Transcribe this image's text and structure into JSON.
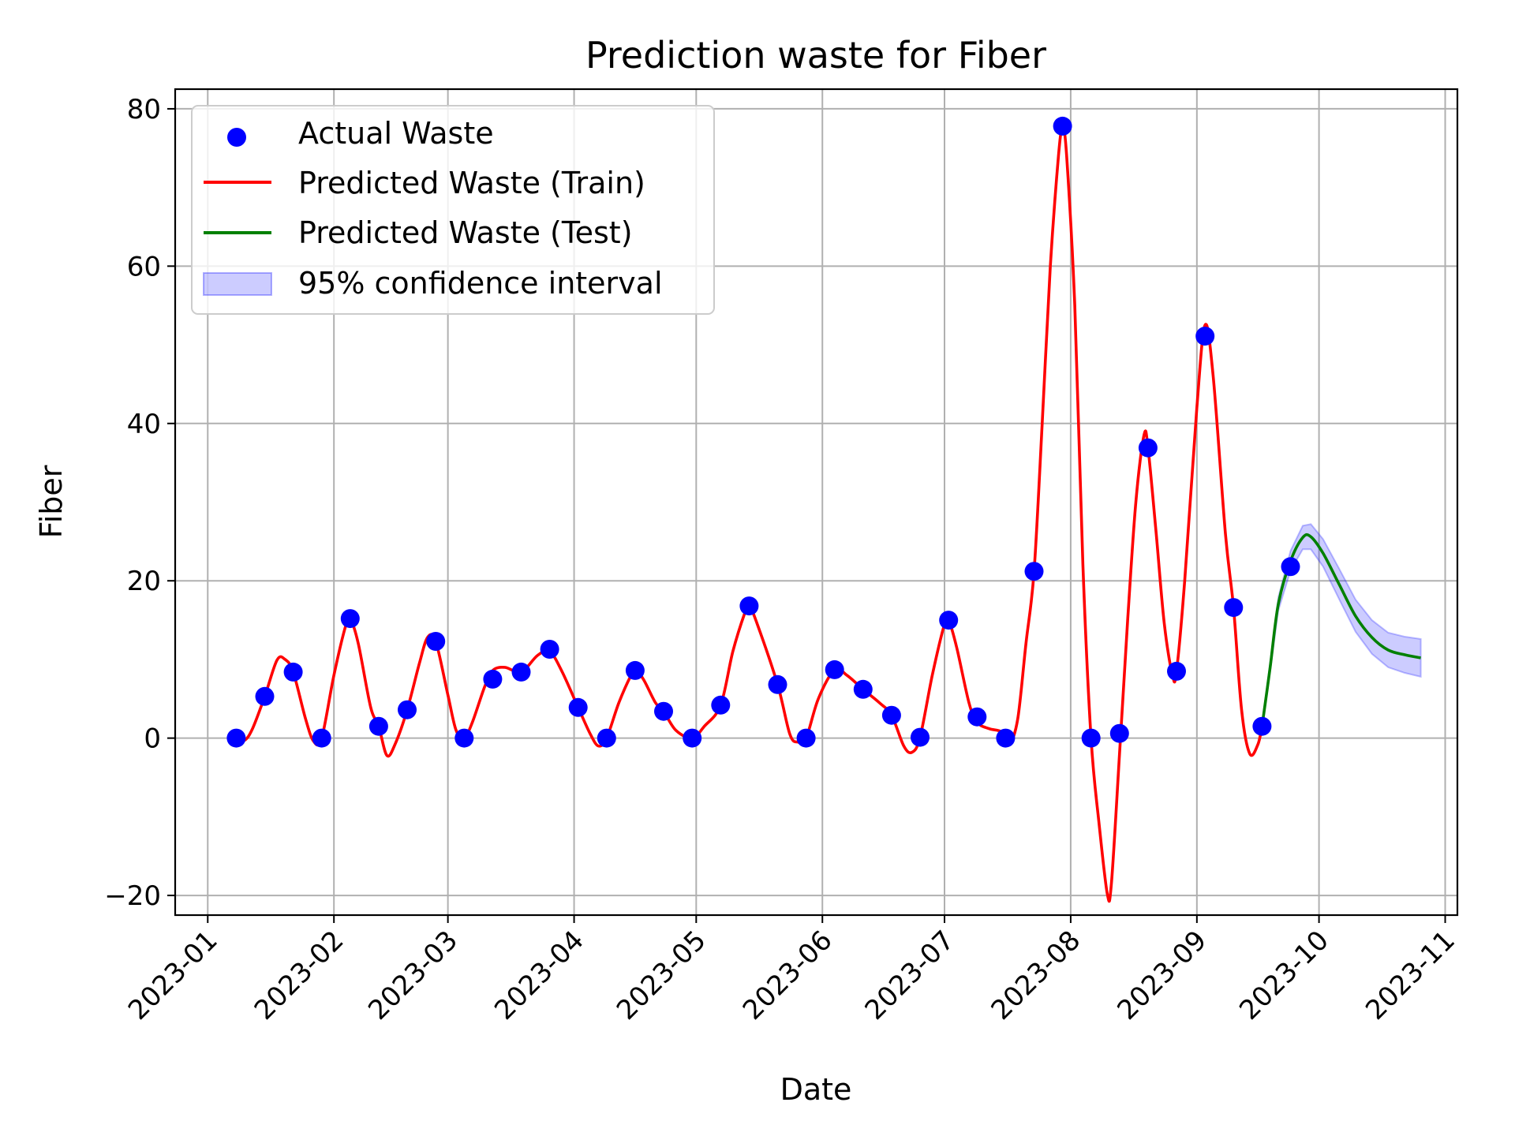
{
  "chart_data": {
    "type": "line",
    "title": "Prediction waste for Fiber",
    "xlabel": "Date",
    "ylabel": "Fiber",
    "ylim": [
      -22.5,
      82.5
    ],
    "xlim": [
      "2022-12-24",
      "2023-11-04"
    ],
    "grid": true,
    "legend_position": "top-left",
    "x_ticks": [
      "2023-01",
      "2023-02",
      "2023-03",
      "2023-04",
      "2023-05",
      "2023-06",
      "2023-07",
      "2023-08",
      "2023-09",
      "2023-10",
      "2023-11"
    ],
    "y_ticks": [
      -20,
      0,
      20,
      40,
      60,
      80
    ],
    "y_tick_labels": [
      "−20",
      "0",
      "20",
      "40",
      "60",
      "80"
    ],
    "colors": {
      "actual": "#0000ff",
      "train": "#ff0000",
      "test": "#008000",
      "ci_fill": "#0000ff"
    },
    "series": [
      {
        "name": "Actual Waste",
        "kind": "scatter",
        "points": [
          [
            "2023-01-08",
            0.0
          ],
          [
            "2023-01-15",
            5.3
          ],
          [
            "2023-01-22",
            8.4
          ],
          [
            "2023-01-29",
            0.0
          ],
          [
            "2023-02-05",
            15.2
          ],
          [
            "2023-02-12",
            1.5
          ],
          [
            "2023-02-19",
            3.6
          ],
          [
            "2023-02-26",
            12.3
          ],
          [
            "2023-03-05",
            0.0
          ],
          [
            "2023-03-12",
            7.5
          ],
          [
            "2023-03-19",
            8.4
          ],
          [
            "2023-03-26",
            11.3
          ],
          [
            "2023-04-02",
            3.9
          ],
          [
            "2023-04-09",
            0.0
          ],
          [
            "2023-04-16",
            8.6
          ],
          [
            "2023-04-23",
            3.4
          ],
          [
            "2023-04-30",
            0.0
          ],
          [
            "2023-05-07",
            4.2
          ],
          [
            "2023-05-14",
            16.8
          ],
          [
            "2023-05-21",
            6.8
          ],
          [
            "2023-05-28",
            0.0
          ],
          [
            "2023-06-04",
            8.7
          ],
          [
            "2023-06-11",
            6.2
          ],
          [
            "2023-06-18",
            2.9
          ],
          [
            "2023-06-25",
            0.1
          ],
          [
            "2023-07-02",
            15.0
          ],
          [
            "2023-07-09",
            2.7
          ],
          [
            "2023-07-16",
            0.0
          ],
          [
            "2023-07-23",
            21.2
          ],
          [
            "2023-07-30",
            77.8
          ],
          [
            "2023-08-06",
            0.0
          ],
          [
            "2023-08-13",
            0.6
          ],
          [
            "2023-08-20",
            36.9
          ],
          [
            "2023-08-27",
            8.5
          ],
          [
            "2023-09-03",
            51.1
          ],
          [
            "2023-09-10",
            16.6
          ],
          [
            "2023-09-17",
            1.5
          ],
          [
            "2023-09-24",
            21.8
          ]
        ]
      },
      {
        "name": "Predicted Waste (Train)",
        "kind": "line",
        "points": [
          [
            "2023-01-08",
            0.0
          ],
          [
            "2023-01-10",
            -0.3
          ],
          [
            "2023-01-12",
            1.2
          ],
          [
            "2023-01-15",
            5.3
          ],
          [
            "2023-01-18",
            9.9
          ],
          [
            "2023-01-20",
            10.0
          ],
          [
            "2023-01-22",
            8.4
          ],
          [
            "2023-01-25",
            2.5
          ],
          [
            "2023-01-27",
            -0.4
          ],
          [
            "2023-01-29",
            0.0
          ],
          [
            "2023-02-01",
            8.0
          ],
          [
            "2023-02-04",
            14.5
          ],
          [
            "2023-02-05",
            15.2
          ],
          [
            "2023-02-07",
            12.0
          ],
          [
            "2023-02-10",
            4.0
          ],
          [
            "2023-02-12",
            1.5
          ],
          [
            "2023-02-14",
            -2.2
          ],
          [
            "2023-02-16",
            -0.8
          ],
          [
            "2023-02-19",
            3.6
          ],
          [
            "2023-02-22",
            9.5
          ],
          [
            "2023-02-24",
            12.8
          ],
          [
            "2023-02-26",
            12.3
          ],
          [
            "2023-03-01",
            5.5
          ],
          [
            "2023-03-03",
            1.0
          ],
          [
            "2023-03-05",
            0.0
          ],
          [
            "2023-03-07",
            2.0
          ],
          [
            "2023-03-10",
            6.5
          ],
          [
            "2023-03-12",
            8.6
          ],
          [
            "2023-03-15",
            9.0
          ],
          [
            "2023-03-19",
            8.4
          ],
          [
            "2023-03-23",
            10.5
          ],
          [
            "2023-03-26",
            11.0
          ],
          [
            "2023-03-29",
            8.5
          ],
          [
            "2023-04-02",
            3.9
          ],
          [
            "2023-04-05",
            0.5
          ],
          [
            "2023-04-07",
            -1.0
          ],
          [
            "2023-04-09",
            0.0
          ],
          [
            "2023-04-12",
            4.5
          ],
          [
            "2023-04-15",
            8.0
          ],
          [
            "2023-04-16",
            8.6
          ],
          [
            "2023-04-18",
            7.5
          ],
          [
            "2023-04-21",
            4.5
          ],
          [
            "2023-04-23",
            3.4
          ],
          [
            "2023-04-26",
            1.0
          ],
          [
            "2023-04-30",
            0.0
          ],
          [
            "2023-05-03",
            1.5
          ],
          [
            "2023-05-07",
            4.2
          ],
          [
            "2023-05-10",
            11.0
          ],
          [
            "2023-05-13",
            16.0
          ],
          [
            "2023-05-14",
            16.8
          ],
          [
            "2023-05-16",
            14.5
          ],
          [
            "2023-05-21",
            6.8
          ],
          [
            "2023-05-24",
            0.5
          ],
          [
            "2023-05-26",
            -0.5
          ],
          [
            "2023-05-28",
            0.0
          ],
          [
            "2023-05-31",
            5.0
          ],
          [
            "2023-06-04",
            8.7
          ],
          [
            "2023-06-07",
            8.0
          ],
          [
            "2023-06-11",
            6.2
          ],
          [
            "2023-06-15",
            4.5
          ],
          [
            "2023-06-18",
            2.9
          ],
          [
            "2023-06-21",
            -1.0
          ],
          [
            "2023-06-23",
            -1.8
          ],
          [
            "2023-06-25",
            0.1
          ],
          [
            "2023-06-28",
            8.0
          ],
          [
            "2023-07-01",
            14.5
          ],
          [
            "2023-07-02",
            15.0
          ],
          [
            "2023-07-04",
            11.5
          ],
          [
            "2023-07-07",
            4.5
          ],
          [
            "2023-07-09",
            2.0
          ],
          [
            "2023-07-12",
            1.2
          ],
          [
            "2023-07-15",
            0.8
          ],
          [
            "2023-07-17",
            -0.6
          ],
          [
            "2023-07-19",
            2.5
          ],
          [
            "2023-07-21",
            12.0
          ],
          [
            "2023-07-23",
            21.2
          ],
          [
            "2023-07-25",
            40.0
          ],
          [
            "2023-07-27",
            60.0
          ],
          [
            "2023-07-29",
            74.0
          ],
          [
            "2023-07-30",
            77.5
          ],
          [
            "2023-07-31",
            74.0
          ],
          [
            "2023-08-02",
            55.0
          ],
          [
            "2023-08-04",
            22.0
          ],
          [
            "2023-08-06",
            0.0
          ],
          [
            "2023-08-08",
            -11.0
          ],
          [
            "2023-08-10",
            -19.8
          ],
          [
            "2023-08-11",
            -18.5
          ],
          [
            "2023-08-13",
            -2.0
          ],
          [
            "2023-08-15",
            15.0
          ],
          [
            "2023-08-17",
            30.0
          ],
          [
            "2023-08-19",
            38.5
          ],
          [
            "2023-08-20",
            36.9
          ],
          [
            "2023-08-22",
            26.0
          ],
          [
            "2023-08-24",
            14.5
          ],
          [
            "2023-08-26",
            8.0
          ],
          [
            "2023-08-27",
            8.5
          ],
          [
            "2023-08-29",
            20.0
          ],
          [
            "2023-09-01",
            42.0
          ],
          [
            "2023-09-03",
            52.5
          ],
          [
            "2023-09-05",
            46.0
          ],
          [
            "2023-09-08",
            26.0
          ],
          [
            "2023-09-10",
            16.6
          ],
          [
            "2023-09-12",
            3.5
          ],
          [
            "2023-09-14",
            -2.0
          ],
          [
            "2023-09-16",
            -0.8
          ],
          [
            "2023-09-17",
            1.5
          ]
        ]
      },
      {
        "name": "Predicted Waste (Test)",
        "kind": "line",
        "points": [
          [
            "2023-09-17",
            1.5
          ],
          [
            "2023-09-19",
            9.0
          ],
          [
            "2023-09-21",
            17.0
          ],
          [
            "2023-09-24",
            22.5
          ],
          [
            "2023-09-27",
            25.5
          ],
          [
            "2023-09-29",
            25.6
          ],
          [
            "2023-10-02",
            23.5
          ],
          [
            "2023-10-06",
            19.5
          ],
          [
            "2023-10-10",
            15.5
          ],
          [
            "2023-10-14",
            12.8
          ],
          [
            "2023-10-18",
            11.2
          ],
          [
            "2023-10-22",
            10.6
          ],
          [
            "2023-10-26",
            10.2
          ]
        ]
      }
    ],
    "confidence_interval": {
      "name": "95% confidence interval",
      "points": [
        [
          "2023-09-17",
          1.2,
          1.8
        ],
        [
          "2023-09-19",
          8.5,
          9.6
        ],
        [
          "2023-09-21",
          16.2,
          17.9
        ],
        [
          "2023-09-24",
          21.3,
          23.8
        ],
        [
          "2023-09-27",
          24.0,
          27.0
        ],
        [
          "2023-09-29",
          24.0,
          27.2
        ],
        [
          "2023-10-02",
          21.8,
          25.3
        ],
        [
          "2023-10-06",
          17.6,
          21.5
        ],
        [
          "2023-10-10",
          13.5,
          17.6
        ],
        [
          "2023-10-14",
          10.7,
          15.0
        ],
        [
          "2023-10-18",
          9.0,
          13.4
        ],
        [
          "2023-10-22",
          8.3,
          12.9
        ],
        [
          "2023-10-26",
          7.8,
          12.6
        ]
      ]
    }
  }
}
